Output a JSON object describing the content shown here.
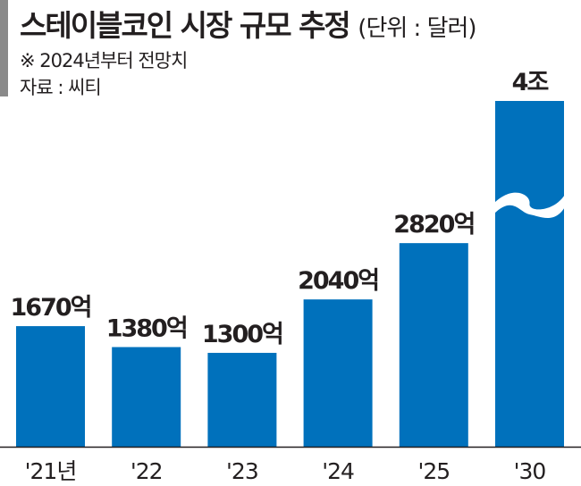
{
  "chart_data": {
    "type": "bar",
    "title": "스테이블코인 시장 규모 추정",
    "unit_note": "(단위 : 달러)",
    "notes": [
      "※ 2024년부터 전망치",
      "자료 : 씨티"
    ],
    "categories": [
      "'21년",
      "'22",
      "'23",
      "'24",
      "'25",
      "'30"
    ],
    "values": [
      1670,
      1380,
      1300,
      2040,
      2820,
      40000
    ],
    "value_unit": "억 달러",
    "data_labels": [
      "1670억",
      "1380억",
      "1300억",
      "2040억",
      "2820억",
      "4조"
    ],
    "broken_axis_bar": "'30",
    "bar_color": "#0071bc",
    "grid": false,
    "legend": "none"
  }
}
